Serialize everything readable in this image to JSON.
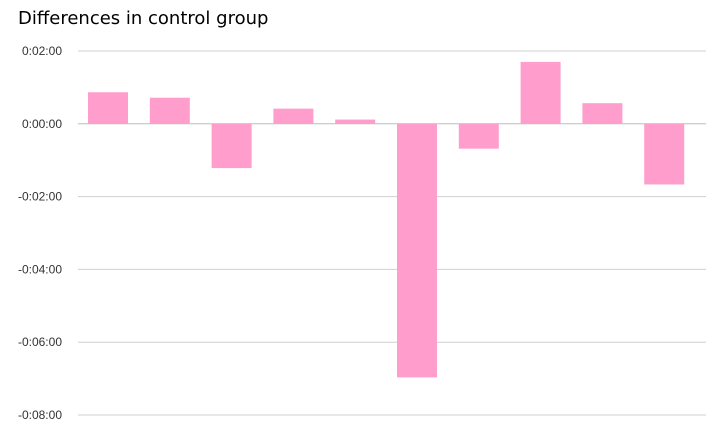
{
  "chart_data": {
    "type": "bar",
    "title": "Differences in control group",
    "xlabel": "",
    "ylabel": "",
    "y_unit": "seconds",
    "ylim": [
      -480,
      120
    ],
    "yticks": [
      {
        "value": 120,
        "label": "0:02:00"
      },
      {
        "value": 0,
        "label": "0:00:00"
      },
      {
        "value": -120,
        "label": "-0:02:00"
      },
      {
        "value": -240,
        "label": "-0:04:00"
      },
      {
        "value": -360,
        "label": "-0:06:00"
      },
      {
        "value": -480,
        "label": "-0:08:00"
      }
    ],
    "values": [
      52,
      43,
      -73,
      25,
      7,
      -418,
      -41,
      102,
      34,
      -100
    ],
    "bar_color": "#ff9ecc",
    "grid": true,
    "legend": "none"
  }
}
